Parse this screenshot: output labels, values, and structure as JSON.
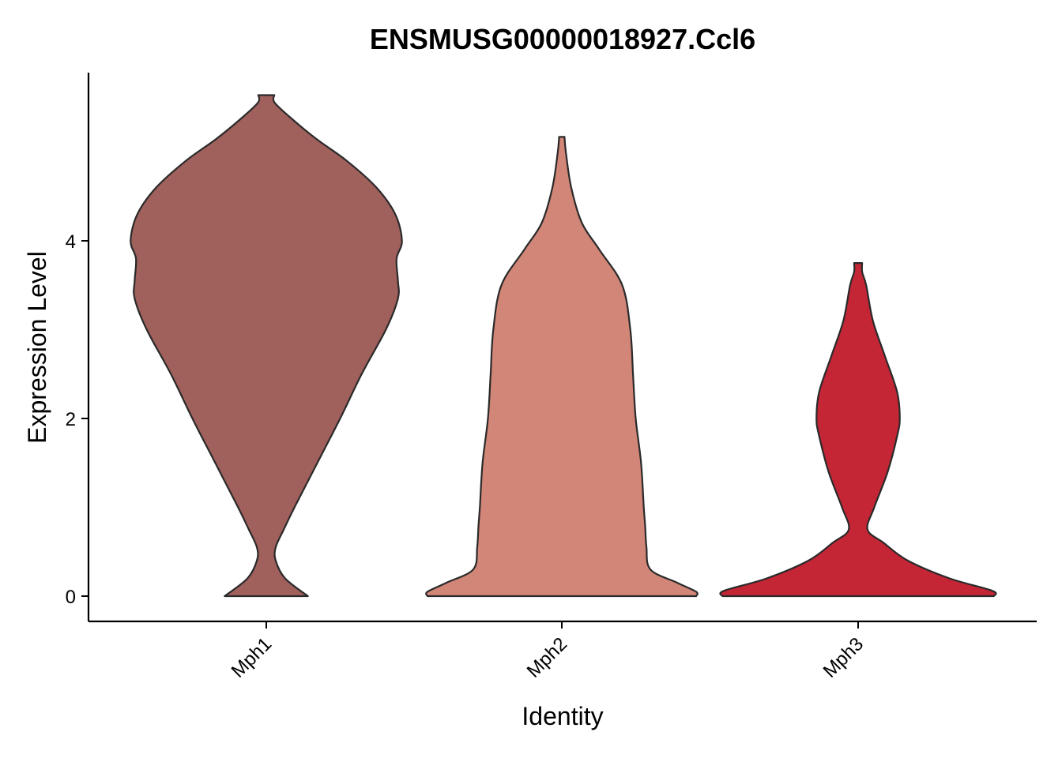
{
  "chart_data": {
    "type": "violin",
    "title": "ENSMUSG00000018927.Ccl6",
    "xlabel": "Identity",
    "ylabel": "Expression Level",
    "categories": [
      "Mph1",
      "Mph2",
      "Mph3"
    ],
    "ylim": [
      -0.28,
      5.85
    ],
    "yticks": [
      0,
      2,
      4
    ],
    "ytick_labels": [
      "0",
      "2",
      "4"
    ],
    "grid": false,
    "legend": "none",
    "colors": {
      "Mph1": "#a0605c",
      "Mph2": "#d28678",
      "Mph3": "#c42636"
    },
    "series": [
      {
        "category": "Mph1",
        "max": 5.64,
        "density_profile": [
          [
            0.0,
            0.155
          ],
          [
            0.2,
            0.07
          ],
          [
            0.4,
            0.035
          ],
          [
            0.55,
            0.035
          ],
          [
            0.75,
            0.065
          ],
          [
            1.0,
            0.105
          ],
          [
            1.5,
            0.19
          ],
          [
            2.0,
            0.275
          ],
          [
            2.5,
            0.355
          ],
          [
            3.0,
            0.445
          ],
          [
            3.35,
            0.49
          ],
          [
            3.55,
            0.49
          ],
          [
            3.8,
            0.485
          ],
          [
            4.0,
            0.505
          ],
          [
            4.3,
            0.48
          ],
          [
            4.6,
            0.41
          ],
          [
            4.9,
            0.3
          ],
          [
            5.15,
            0.185
          ],
          [
            5.4,
            0.085
          ],
          [
            5.56,
            0.03
          ],
          [
            5.64,
            0.03
          ]
        ]
      },
      {
        "category": "Mph2",
        "max": 5.17,
        "density_profile": [
          [
            0.0,
            0.5
          ],
          [
            0.05,
            0.5
          ],
          [
            0.15,
            0.43
          ],
          [
            0.3,
            0.33
          ],
          [
            0.55,
            0.315
          ],
          [
            0.8,
            0.31
          ],
          [
            1.0,
            0.305
          ],
          [
            1.5,
            0.295
          ],
          [
            2.0,
            0.275
          ],
          [
            2.5,
            0.265
          ],
          [
            3.0,
            0.255
          ],
          [
            3.5,
            0.225
          ],
          [
            3.9,
            0.14
          ],
          [
            4.2,
            0.075
          ],
          [
            4.6,
            0.035
          ],
          [
            5.0,
            0.015
          ],
          [
            5.17,
            0.01
          ]
        ]
      },
      {
        "category": "Mph3",
        "max": 3.75,
        "density_profile": [
          [
            0.0,
            0.505
          ],
          [
            0.06,
            0.5
          ],
          [
            0.2,
            0.34
          ],
          [
            0.4,
            0.185
          ],
          [
            0.6,
            0.095
          ],
          [
            0.75,
            0.035
          ],
          [
            1.0,
            0.06
          ],
          [
            1.4,
            0.11
          ],
          [
            1.8,
            0.145
          ],
          [
            2.0,
            0.155
          ],
          [
            2.3,
            0.145
          ],
          [
            2.7,
            0.1
          ],
          [
            3.1,
            0.055
          ],
          [
            3.5,
            0.03
          ],
          [
            3.65,
            0.015
          ],
          [
            3.75,
            0.015
          ]
        ]
      }
    ]
  }
}
